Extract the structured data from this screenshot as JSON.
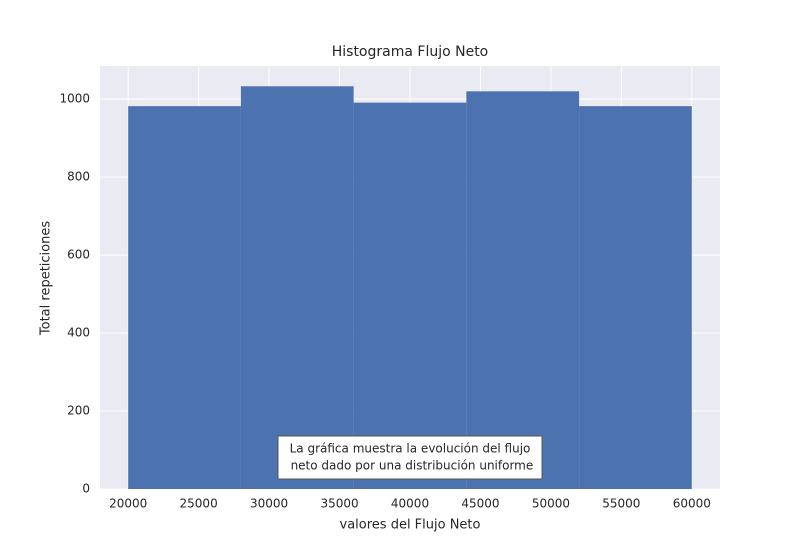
{
  "chart_data": {
    "type": "histogram",
    "title": "Histograma Flujo Neto",
    "xlabel": "valores del Flujo Neto",
    "ylabel": "Total repeticiones",
    "bins": [
      20000,
      28000,
      36000,
      44000,
      52000,
      60000
    ],
    "values": [
      982,
      1033,
      991,
      1020,
      982
    ],
    "color": "#4c72b0",
    "xlim": [
      18000,
      62000
    ],
    "ylim": [
      0,
      1085
    ],
    "xticks": [
      20000,
      25000,
      30000,
      35000,
      40000,
      45000,
      50000,
      55000,
      60000
    ],
    "yticks": [
      0,
      200,
      400,
      600,
      800,
      1000
    ],
    "grid": true,
    "annotation": [
      "La gráfica muestra la evolución del flujo",
      " neto dado por una distribución uniforme"
    ]
  }
}
